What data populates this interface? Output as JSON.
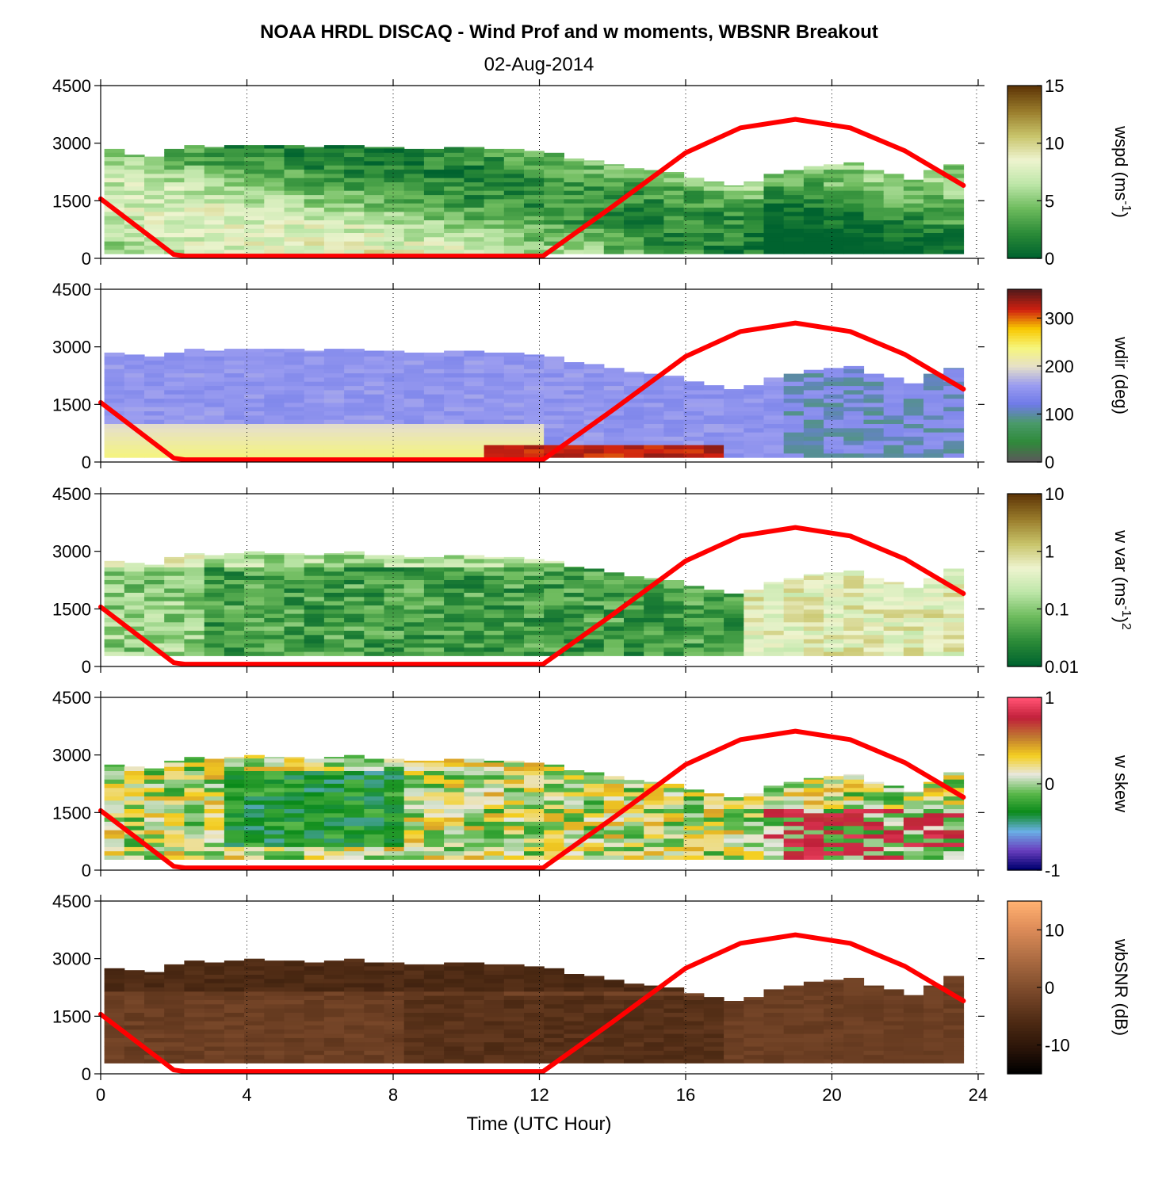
{
  "chart_data": {
    "type": "heatmap",
    "title": "NOAA HRDL DISCAQ - Wind Prof and w moments, WBSNR Breakout",
    "subtitle": "02-Aug-2014",
    "xlabel": "Time (UTC Hour)",
    "xlim": [
      0,
      24
    ],
    "xticks": [
      0,
      4,
      8,
      12,
      16,
      20,
      24
    ],
    "xtick_labels": [
      "0",
      "4",
      "8",
      "12",
      "16",
      "20",
      "24"
    ],
    "ylim": [
      0,
      4500
    ],
    "yticks": [
      0,
      1500,
      3000,
      4500
    ],
    "ytick_labels": [
      "0",
      "1500",
      "3000",
      "4500"
    ],
    "grid": "vertical dotted at x ticks",
    "overlay_series": {
      "color": "#ff0000",
      "description_points_x": [
        0,
        2,
        2.3,
        12.1,
        14,
        16,
        17.5,
        19.0,
        20.5,
        22,
        23.6
      ],
      "description_points_y": [
        1550,
        100,
        60,
        60,
        1350,
        2750,
        3400,
        3620,
        3400,
        2800,
        1900
      ]
    },
    "panels": [
      {
        "ylabel_pre": "wspd (ms",
        "ylabel_sup": "-1",
        "ylabel_post": ")",
        "ylabel_post_sup": "",
        "colormap": [
          "#00632f",
          "#2c8c38",
          "#6dbb5d",
          "#bde6a8",
          "#eef4cf",
          "#c8c46a",
          "#9a7d2c",
          "#603808"
        ],
        "cbar_ticks": [
          0,
          5,
          10,
          15
        ],
        "cbar_tick_labels": [
          "0",
          "5",
          "10",
          "15"
        ],
        "top_height": [
          2850,
          2700,
          2650,
          2850,
          2950,
          2900,
          2950,
          2950,
          2950,
          2950,
          2900,
          2950,
          2950,
          2900,
          2900,
          2850,
          2850,
          2900,
          2900,
          2850,
          2850,
          2800,
          2750,
          2600,
          2550,
          2450,
          2350,
          2300,
          2250,
          2100,
          2000,
          1900,
          2000,
          2200,
          2300,
          2400,
          2450,
          2500,
          2300,
          2200,
          2050,
          2300,
          2450
        ]
      },
      {
        "ylabel_pre": "wdir (deg)",
        "ylabel_sup": "",
        "ylabel_post": "",
        "ylabel_post_sup": "",
        "colormap": [
          "#5a5a5a",
          "#2f8a3a",
          "#4a9a6a",
          "#6f7ae8",
          "#9a9cf0",
          "#e6e0c8",
          "#f6f67a",
          "#f8c800",
          "#d02010",
          "#5a1a1a"
        ],
        "cbar_ticks": [
          0,
          100,
          200,
          300
        ],
        "cbar_tick_labels": [
          "0",
          "100",
          "200",
          "300"
        ],
        "top_height": [
          2850,
          2800,
          2750,
          2850,
          2950,
          2900,
          2950,
          2950,
          2950,
          2950,
          2900,
          2950,
          2950,
          2900,
          2900,
          2850,
          2850,
          2900,
          2900,
          2850,
          2850,
          2800,
          2750,
          2600,
          2550,
          2450,
          2350,
          2300,
          2250,
          2100,
          2000,
          1900,
          2000,
          2200,
          2300,
          2400,
          2450,
          2500,
          2300,
          2200,
          2050,
          2300,
          2450
        ]
      },
      {
        "ylabel_pre": "w var (ms",
        "ylabel_sup": "-1",
        "ylabel_post": ")",
        "ylabel_post_sup": "2",
        "colormap": [
          "#00632f",
          "#2c8c38",
          "#6dbb5d",
          "#bde6a8",
          "#eef4cf",
          "#c8c46a",
          "#9a7d2c",
          "#603808"
        ],
        "cbar_ticks": [
          0.01,
          0.1,
          1,
          10
        ],
        "cbar_tick_labels": [
          "0.01",
          "0.1",
          "1",
          "10"
        ],
        "top_height": [
          2750,
          2700,
          2650,
          2850,
          2950,
          2900,
          2950,
          3000,
          2950,
          2950,
          2900,
          2950,
          3000,
          2900,
          2900,
          2850,
          2850,
          2900,
          2900,
          2850,
          2850,
          2800,
          2750,
          2600,
          2550,
          2450,
          2350,
          2300,
          2250,
          2100,
          2000,
          1900,
          2000,
          2200,
          2300,
          2400,
          2450,
          2500,
          2300,
          2200,
          2050,
          2300,
          2550
        ]
      },
      {
        "ylabel_pre": "w skew",
        "ylabel_sup": "",
        "ylabel_post": "",
        "ylabel_post_sup": "",
        "colormap": [
          "#000070",
          "#6a3fbf",
          "#6ab0e6",
          "#0a8a1a",
          "#5ab84a",
          "#e8e8e0",
          "#f4cf20",
          "#c07830",
          "#c0203a",
          "#ff5070"
        ],
        "cbar_ticks": [
          -1,
          0,
          1
        ],
        "cbar_tick_labels": [
          "-1",
          "0",
          "1"
        ],
        "top_height": [
          2750,
          2700,
          2650,
          2850,
          2950,
          2900,
          2950,
          3000,
          2950,
          2950,
          2900,
          2950,
          3000,
          2900,
          2900,
          2850,
          2850,
          2900,
          2900,
          2850,
          2850,
          2800,
          2750,
          2600,
          2550,
          2450,
          2350,
          2300,
          2250,
          2100,
          2000,
          1900,
          2000,
          2200,
          2300,
          2400,
          2450,
          2500,
          2300,
          2200,
          2050,
          2300,
          2550
        ]
      },
      {
        "ylabel_pre": "wbSNR (dB)",
        "ylabel_sup": "",
        "ylabel_post": "",
        "ylabel_post_sup": "",
        "colormap": [
          "#000000",
          "#2a1408",
          "#4a2812",
          "#6e4024",
          "#925a36",
          "#b87448",
          "#e08e5a",
          "#ffb070"
        ],
        "cbar_ticks": [
          -10,
          0,
          10
        ],
        "cbar_tick_labels": [
          "-10",
          "0",
          "10"
        ],
        "top_height": [
          2750,
          2700,
          2650,
          2850,
          2950,
          2900,
          2950,
          3000,
          2950,
          2950,
          2900,
          2950,
          3000,
          2900,
          2900,
          2850,
          2850,
          2900,
          2900,
          2850,
          2850,
          2800,
          2750,
          2600,
          2550,
          2450,
          2350,
          2300,
          2250,
          2100,
          2000,
          1900,
          2000,
          2200,
          2300,
          2400,
          2450,
          2500,
          2300,
          2200,
          2050,
          2300,
          2550
        ]
      }
    ]
  }
}
